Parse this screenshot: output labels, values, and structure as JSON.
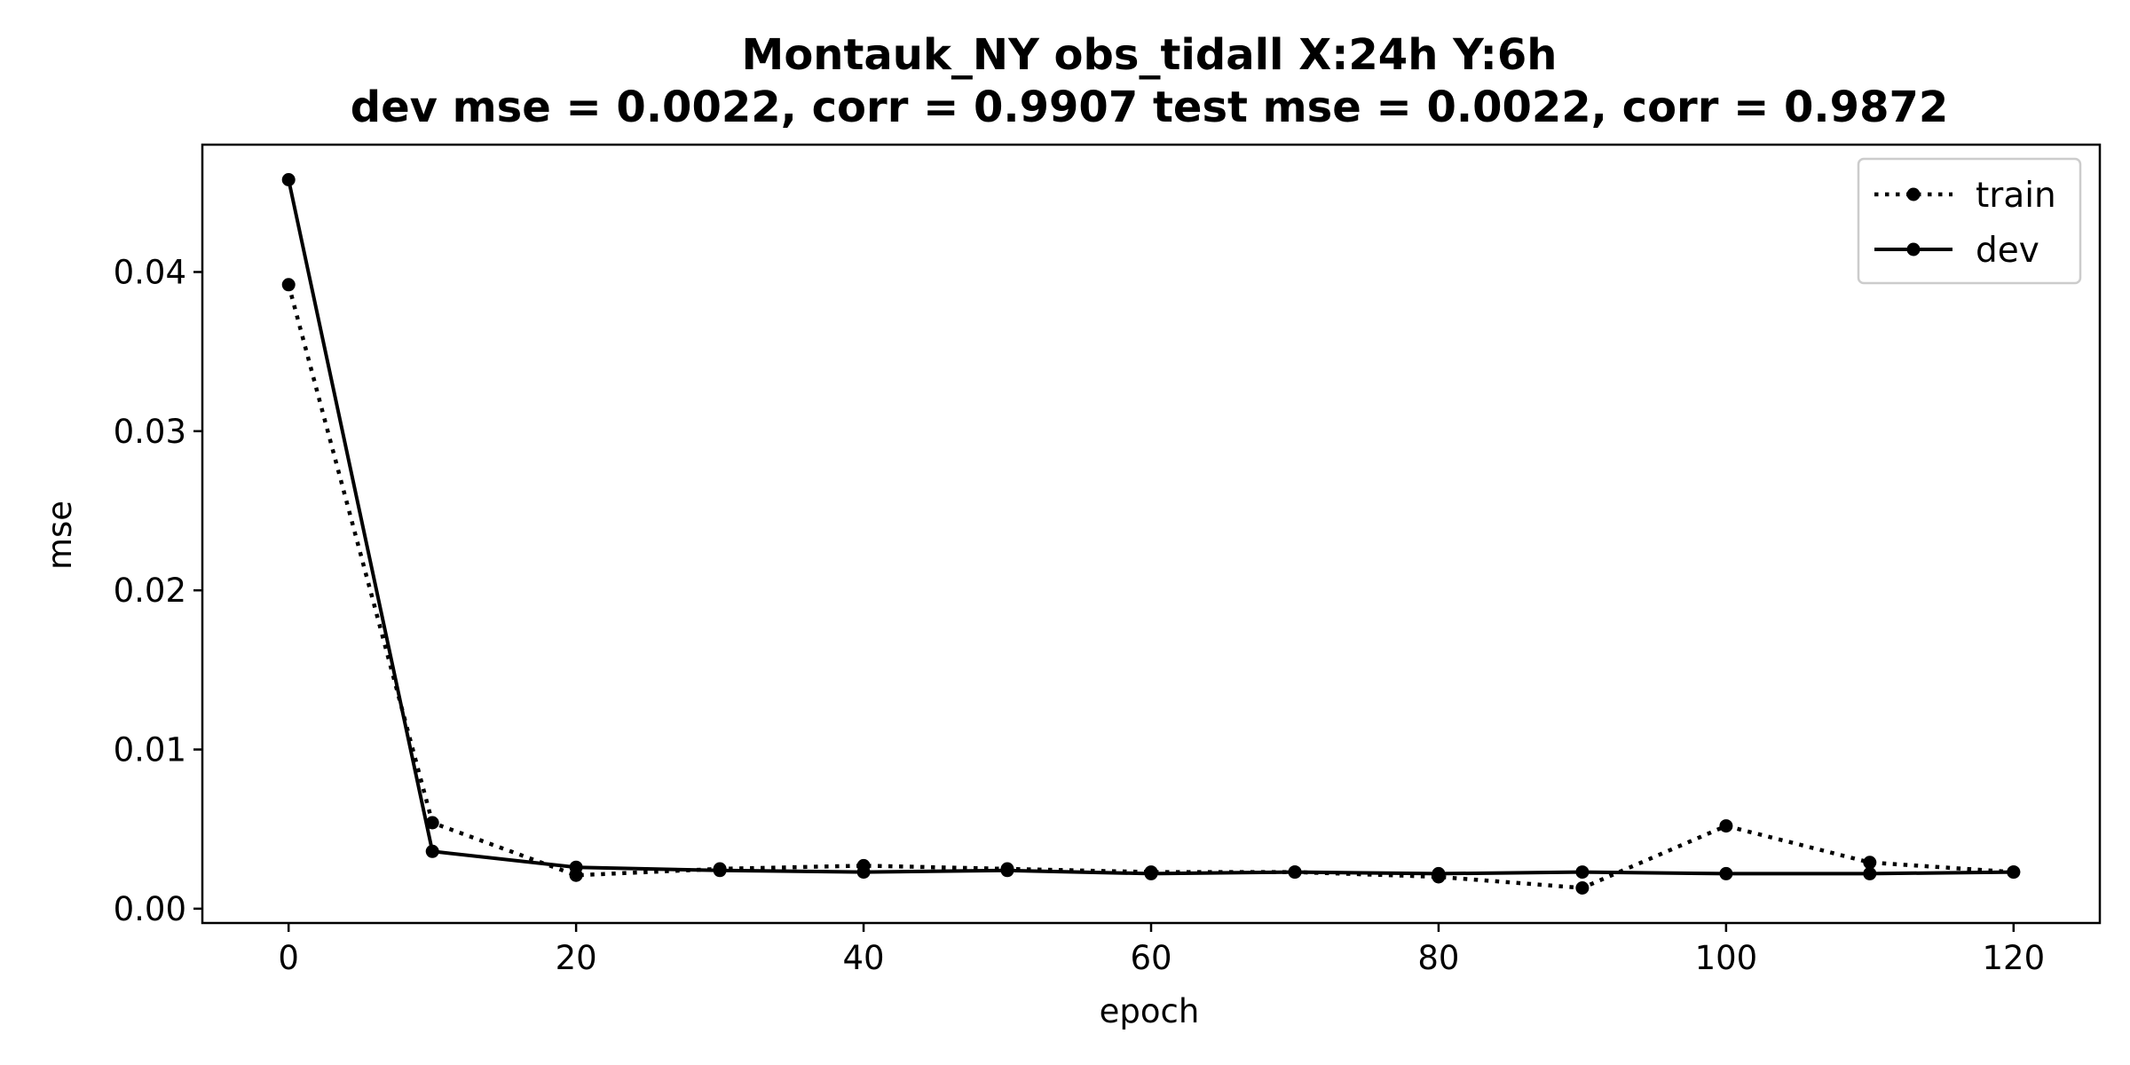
{
  "chart_data": {
    "type": "line",
    "title_line1": "Montauk_NY   obs_tidall   X:24h   Y:6h",
    "title_line2": "dev mse = 0.0022, corr = 0.9907   test mse = 0.0022, corr = 0.9872",
    "xlabel": "epoch",
    "ylabel": "mse",
    "xlim": [
      -6,
      126
    ],
    "ylim": [
      -0.0009,
      0.048
    ],
    "xticks": [
      0,
      20,
      40,
      60,
      80,
      100,
      120
    ],
    "yticks": [
      0.0,
      0.01,
      0.02,
      0.03,
      0.04
    ],
    "ytick_labels": [
      "0.00",
      "0.01",
      "0.02",
      "0.03",
      "0.04"
    ],
    "grid": false,
    "legend_position": "top-right",
    "x": [
      0,
      10,
      20,
      30,
      40,
      50,
      60,
      70,
      80,
      90,
      100,
      110,
      120
    ],
    "series": [
      {
        "name": "train",
        "style": "dotted",
        "color": "#000000",
        "values": [
          0.0392,
          0.0054,
          0.0021,
          0.0025,
          0.0027,
          0.0025,
          0.0023,
          0.0023,
          0.002,
          0.0013,
          0.0052,
          0.0029,
          0.0023
        ]
      },
      {
        "name": "dev",
        "style": "solid",
        "color": "#000000",
        "values": [
          0.0458,
          0.0036,
          0.0026,
          0.0024,
          0.0023,
          0.0024,
          0.0022,
          0.0023,
          0.0022,
          0.0023,
          0.0022,
          0.0022,
          0.0023
        ]
      }
    ]
  }
}
